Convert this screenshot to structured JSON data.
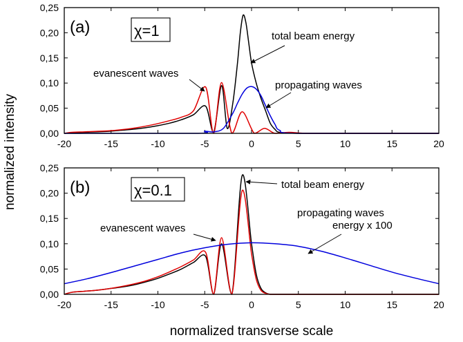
{
  "ylabel": "normalized intensity",
  "xlabel": "normalized transverse scale",
  "colors": {
    "total": "#000000",
    "evanescent": "#e00000",
    "propagating": "#0000dd"
  },
  "panels": [
    {
      "label": "(a)",
      "chi": "χ=1",
      "annotations": {
        "total": "total beam energy",
        "propagating": "propagating waves",
        "evanescent": "evanescent waves"
      }
    },
    {
      "label": "(b)",
      "chi": "χ=0.1",
      "annotations": {
        "total": "total beam energy",
        "propagating1": "propagating waves",
        "propagating2": "energy x 100",
        "evanescent": "evanescent waves"
      }
    }
  ],
  "chart_data": [
    {
      "type": "line",
      "title": "(a) χ=1",
      "xlabel": "normalized transverse scale",
      "ylabel": "normalized intensity",
      "xlim": [
        -20,
        20
      ],
      "ylim": [
        0,
        0.25
      ],
      "x_ticks": [
        "-20",
        "-15",
        "-10",
        "-5",
        "0",
        "5",
        "10",
        "15",
        "20"
      ],
      "y_ticks": [
        "0,00",
        "0,05",
        "0,10",
        "0,15",
        "0,20",
        "0,25"
      ],
      "series": [
        {
          "name": "total beam energy",
          "color": "#000000",
          "x": [
            -20,
            -19.2,
            -17.9,
            -16.6,
            -15.3,
            -14.0,
            -12.7,
            -11.4,
            -10.1,
            -8.8,
            -7.5,
            -6.2,
            -4.9,
            -4.05,
            -3.2,
            -2.6,
            -2.0,
            -1.5,
            -1.2,
            -0.9,
            -0.6,
            -0.3,
            0,
            0.5,
            1.0,
            1.5,
            2.0,
            2.5,
            3.0,
            5,
            10,
            20
          ],
          "y": [
            0.0,
            0.001,
            0.002,
            0.003,
            0.004,
            0.006,
            0.008,
            0.011,
            0.015,
            0.02,
            0.027,
            0.037,
            0.054,
            0.002,
            0.095,
            0.01,
            0.06,
            0.14,
            0.2,
            0.235,
            0.22,
            0.18,
            0.14,
            0.1,
            0.07,
            0.045,
            0.02,
            0.008,
            0.002,
            0.0,
            0.0,
            0.0
          ]
        },
        {
          "name": "evanescent waves",
          "color": "#e00000",
          "x": [
            -20,
            -19.2,
            -17.9,
            -16.6,
            -15.3,
            -14.0,
            -12.7,
            -11.4,
            -10.1,
            -8.8,
            -7.5,
            -6.2,
            -4.9,
            -4.05,
            -3.2,
            -2.1,
            -1.0,
            0.3,
            1.4,
            2.5,
            4.0,
            6,
            10,
            20
          ],
          "y": [
            0.0,
            0.002,
            0.003,
            0.004,
            0.005,
            0.007,
            0.01,
            0.014,
            0.019,
            0.025,
            0.032,
            0.045,
            0.092,
            0.0,
            0.101,
            0.0,
            0.043,
            0.0,
            0.01,
            0.0,
            0.002,
            0.0,
            0.0,
            0.0
          ]
        },
        {
          "name": "propagating waves",
          "color": "#0000dd",
          "x": [
            -20,
            -6,
            -5,
            -4,
            -3,
            -2,
            -1.5,
            -1,
            -0.5,
            0,
            0.5,
            1,
            1.5,
            2,
            2.5,
            3,
            5,
            20
          ],
          "y": [
            0.0,
            0.0,
            0.004,
            0.003,
            0.01,
            0.04,
            0.06,
            0.078,
            0.09,
            0.093,
            0.088,
            0.075,
            0.055,
            0.035,
            0.018,
            0.006,
            0.0,
            0.0
          ]
        }
      ]
    },
    {
      "type": "line",
      "title": "(b) χ=0.1",
      "xlabel": "normalized transverse scale",
      "ylabel": "normalized intensity",
      "xlim": [
        -20,
        20
      ],
      "ylim": [
        0,
        0.25
      ],
      "x_ticks": [
        "-20",
        "-15",
        "-10",
        "-5",
        "0",
        "5",
        "10",
        "15",
        "20"
      ],
      "y_ticks": [
        "0,00",
        "0,05",
        "0,10",
        "0,15",
        "0,20",
        "0,25"
      ],
      "series": [
        {
          "name": "total beam energy",
          "color": "#000000",
          "x": [
            -20,
            -19.2,
            -17.9,
            -16.6,
            -15.3,
            -14.0,
            -12.7,
            -11.4,
            -10.1,
            -8.8,
            -7.5,
            -6.2,
            -4.9,
            -4.05,
            -3.2,
            -2.1,
            -1.0,
            0.0,
            0.5,
            1.0,
            1.5,
            2.0,
            3.0,
            5,
            10,
            20
          ],
          "y": [
            0.0,
            0.004,
            0.006,
            0.008,
            0.011,
            0.014,
            0.018,
            0.024,
            0.031,
            0.04,
            0.05,
            0.063,
            0.075,
            0.0,
            0.1,
            0.0,
            0.235,
            0.1,
            0.04,
            0.012,
            0.003,
            0.0,
            0.0,
            0.0,
            0.0,
            0.0
          ]
        },
        {
          "name": "evanescent waves",
          "color": "#e00000",
          "x": [
            -20,
            -19.2,
            -17.9,
            -16.6,
            -15.3,
            -14.0,
            -12.7,
            -11.4,
            -10.1,
            -8.8,
            -7.5,
            -6.2,
            -4.9,
            -4.05,
            -3.2,
            -2.1,
            -1.0,
            0.0,
            0.5,
            1.0,
            1.5,
            2.0,
            3.0,
            5,
            10,
            20
          ],
          "y": [
            0.0,
            0.004,
            0.006,
            0.008,
            0.011,
            0.015,
            0.02,
            0.026,
            0.034,
            0.044,
            0.055,
            0.068,
            0.083,
            0.0,
            0.112,
            0.0,
            0.205,
            0.08,
            0.03,
            0.008,
            0.002,
            0.0,
            0.0,
            0.0,
            0.0,
            0.0
          ]
        },
        {
          "name": "propagating waves energy x 100",
          "color": "#0000dd",
          "x": [
            -20,
            -17.5,
            -15,
            -12.5,
            -10,
            -7.5,
            -5,
            -2.5,
            0,
            2.5,
            5,
            7.5,
            10,
            12.5,
            15,
            17.5,
            20
          ],
          "y": [
            0.021,
            0.031,
            0.043,
            0.056,
            0.069,
            0.082,
            0.092,
            0.099,
            0.102,
            0.1,
            0.095,
            0.085,
            0.072,
            0.058,
            0.044,
            0.032,
            0.021
          ]
        }
      ]
    }
  ]
}
